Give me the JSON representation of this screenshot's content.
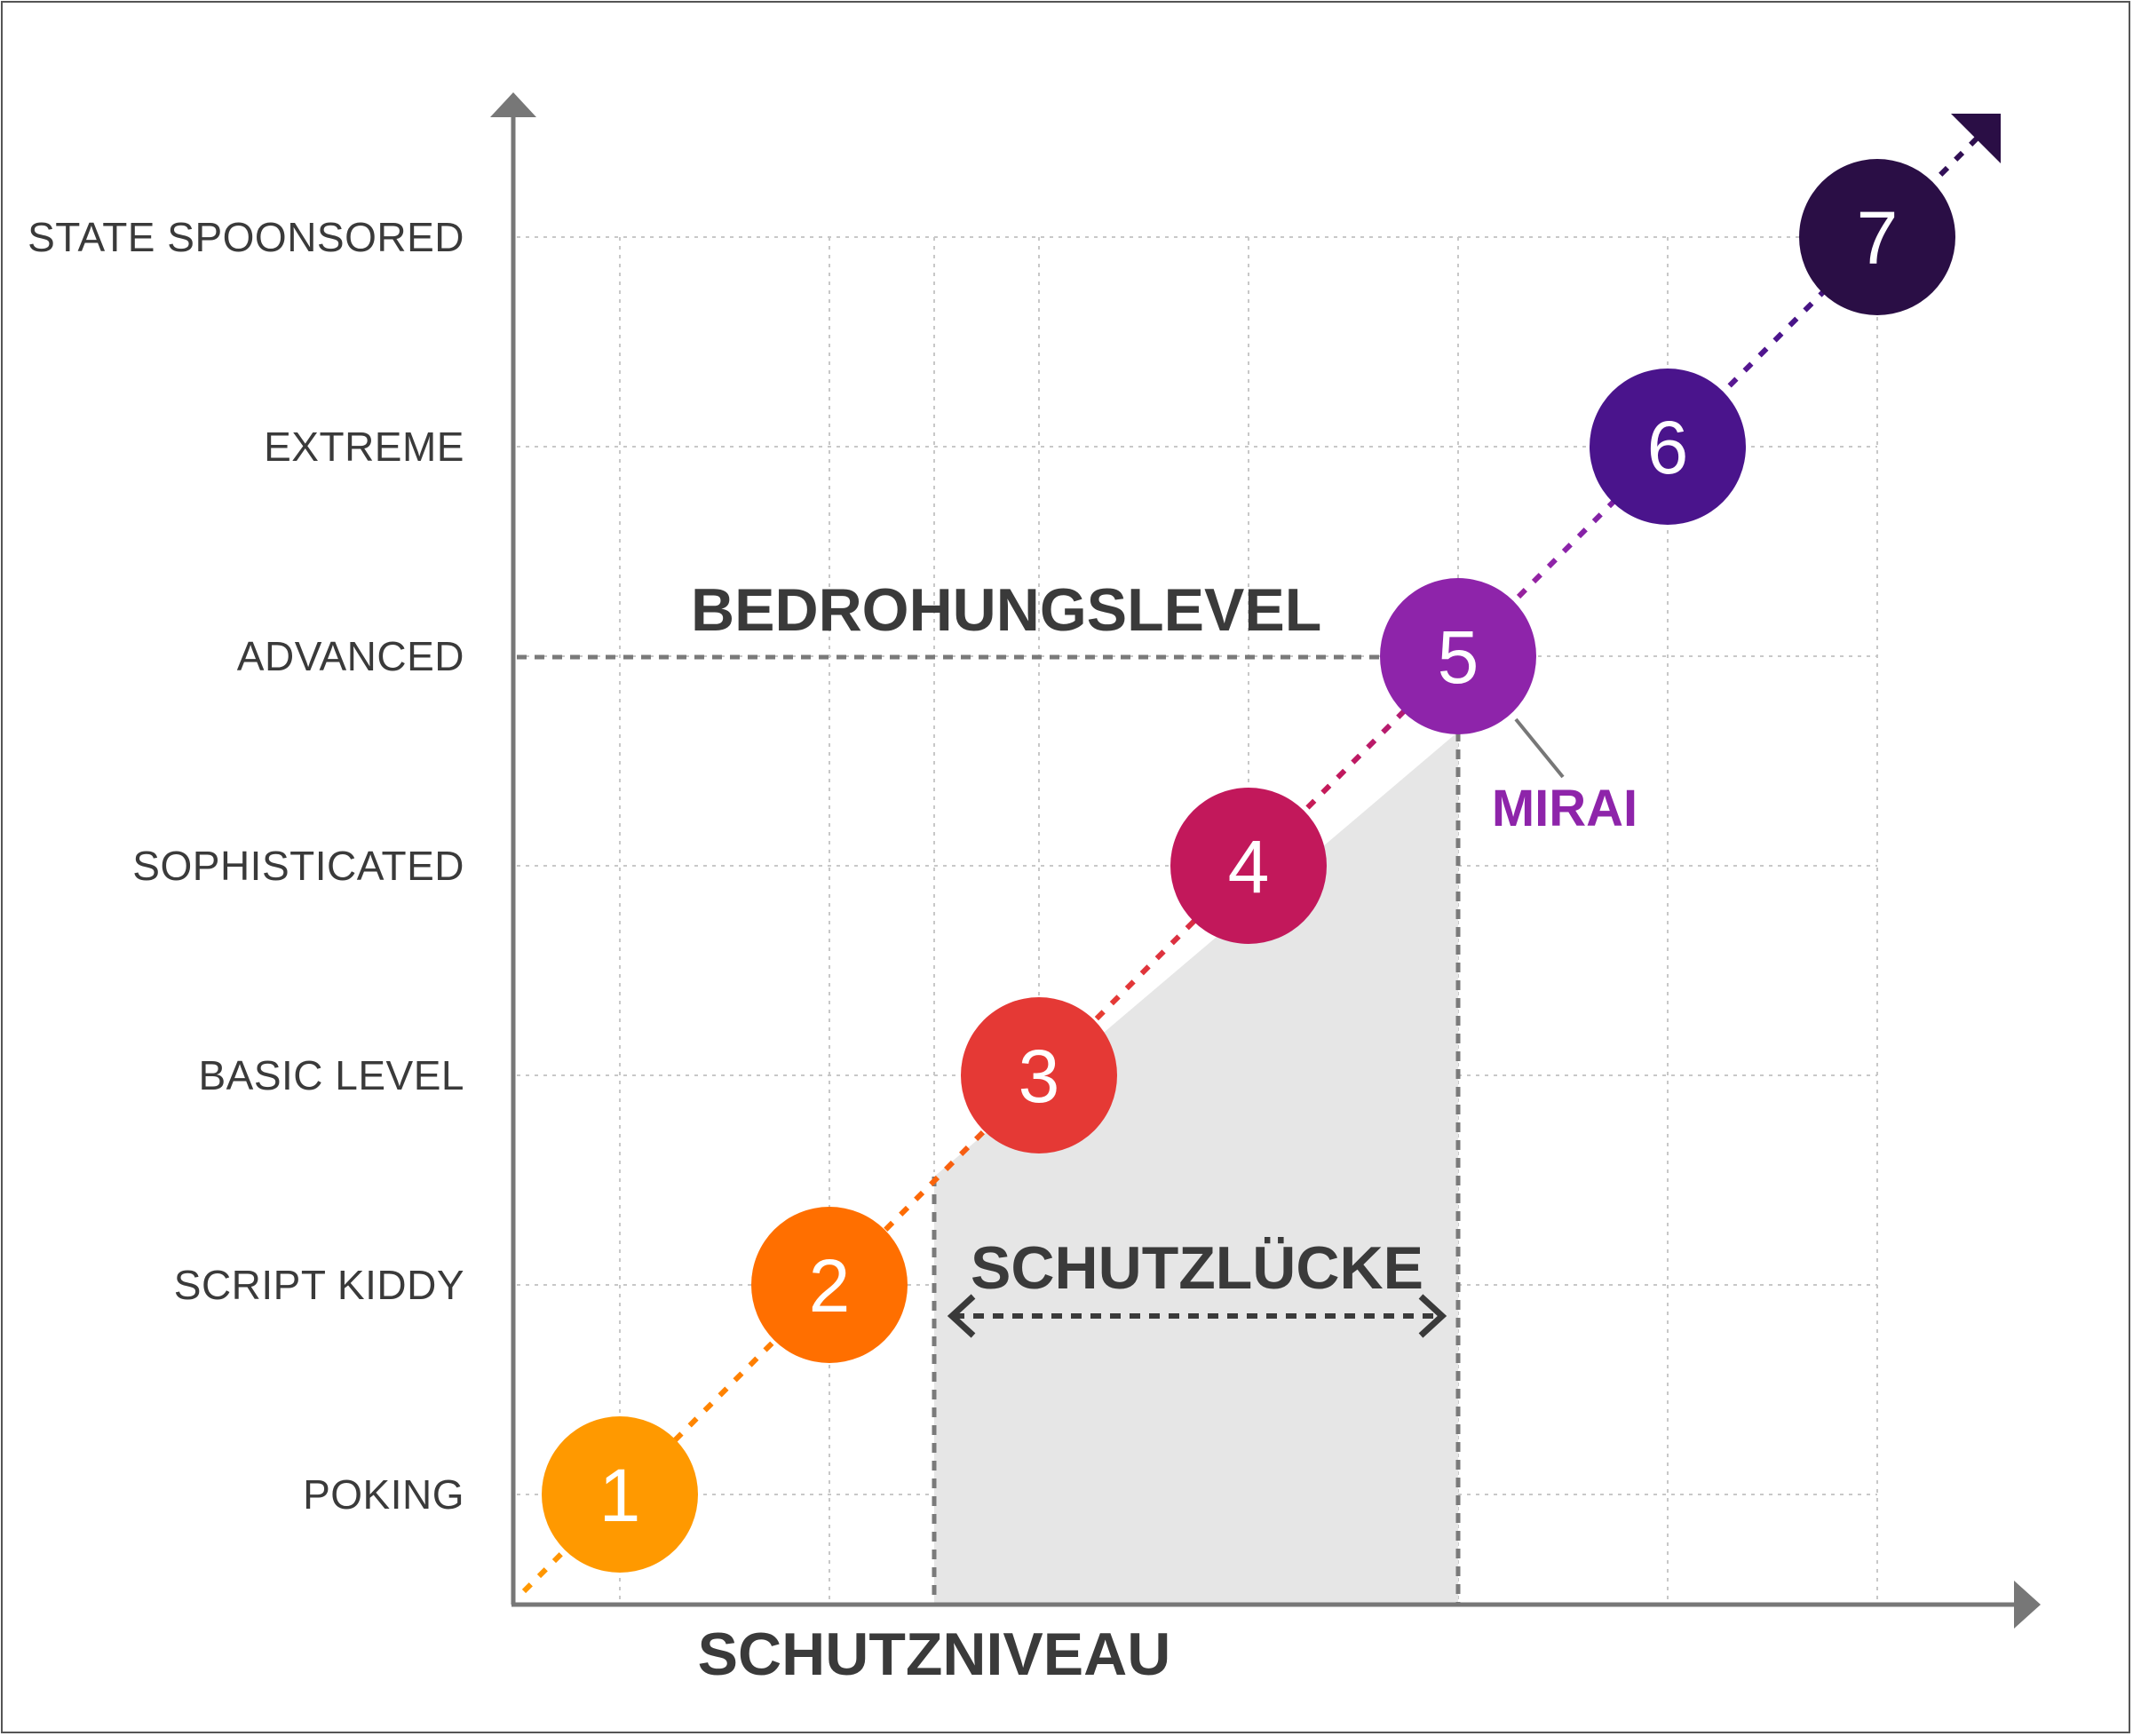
{
  "y_axis_levels": [
    "POKING",
    "SCRIPT KIDDY",
    "BASIC LEVEL",
    "SOPHISTICATED",
    "ADVANCED",
    "EXTREME",
    "STATE SPOONSORED"
  ],
  "nodes": [
    {
      "label": "1",
      "color": "#FF9900"
    },
    {
      "label": "2",
      "color": "#FF6F00"
    },
    {
      "label": "3",
      "color": "#E53935"
    },
    {
      "label": "4",
      "color": "#C2185B"
    },
    {
      "label": "5",
      "color": "#8E24AA"
    },
    {
      "label": "6",
      "color": "#4A148C"
    },
    {
      "label": "7",
      "color": "#2A0E45"
    }
  ],
  "labels": {
    "threat_level": "BEDROHUNGSLEVEL",
    "protection_gap": "SCHUTZLÜCKE",
    "protection_level": "SCHUTZNIVEAU",
    "mirai": "MIRAI"
  },
  "colors": {
    "axis": "#777777",
    "grid": "#c8c8c8",
    "gap_fill": "#e6e6e6",
    "guide": "#7a7a7a",
    "mirai_text": "#8E24AA"
  }
}
